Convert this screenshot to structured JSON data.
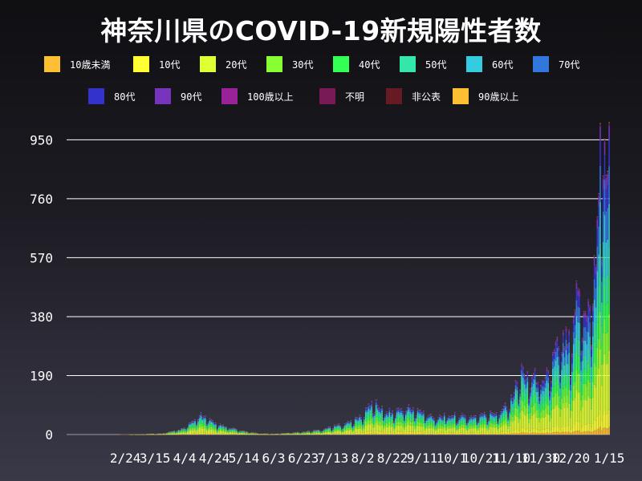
{
  "title": "神奈川県のCOVID-19新規陽性者数",
  "chart_data": {
    "type": "bar",
    "stacked": true,
    "title": "神奈川県のCOVID-19新規陽性者数",
    "xlabel": "",
    "ylabel": "",
    "ylim": [
      0,
      1000
    ],
    "yticks": [
      0,
      190,
      380,
      570,
      760,
      950
    ],
    "grid": "horizontal",
    "legend_position": "top",
    "x_tick_labels": [
      "2/24",
      "3/15",
      "4/4",
      "4/24",
      "5/14",
      "6/3",
      "6/23",
      "7/13",
      "8/2",
      "8/22",
      "9/11",
      "10/1",
      "10/21",
      "11/10",
      "11/30",
      "12/20",
      "1/15"
    ],
    "series": [
      {
        "name": "10歳未満",
        "color": "#ffbf33",
        "share": 0.03
      },
      {
        "name": "10代",
        "color": "#ffff33",
        "share": 0.07
      },
      {
        "name": "20代",
        "color": "#e0ff33",
        "share": 0.24
      },
      {
        "name": "30代",
        "color": "#88ff33",
        "share": 0.15
      },
      {
        "name": "40代",
        "color": "#33ff55",
        "share": 0.14
      },
      {
        "name": "50代",
        "color": "#33e6aa",
        "share": 0.13
      },
      {
        "name": "60代",
        "color": "#33cce0",
        "share": 0.08
      },
      {
        "name": "70代",
        "color": "#3377dd",
        "share": 0.07
      },
      {
        "name": "80代",
        "color": "#3333cc",
        "share": 0.05
      },
      {
        "name": "90代",
        "color": "#7733bb",
        "share": 0.025
      },
      {
        "name": "100歳以上",
        "color": "#992299",
        "share": 0.002
      },
      {
        "name": "不明",
        "color": "#771a55",
        "share": 0.008
      },
      {
        "name": "非公表",
        "color": "#661a22",
        "share": 0.003
      },
      {
        "name": "90歳以上",
        "color": "#ffbf33",
        "share": 0.002
      }
    ],
    "daily_totals": {
      "start": "2020-01-16",
      "end": "2021-01-15",
      "anchors": [
        [
          "2020-01-16",
          0
        ],
        [
          "2020-02-20",
          0
        ],
        [
          "2020-03-01",
          1
        ],
        [
          "2020-03-20",
          3
        ],
        [
          "2020-04-01",
          15
        ],
        [
          "2020-04-10",
          40
        ],
        [
          "2020-04-14",
          65
        ],
        [
          "2020-04-24",
          35
        ],
        [
          "2020-05-05",
          20
        ],
        [
          "2020-05-14",
          10
        ],
        [
          "2020-05-25",
          3
        ],
        [
          "2020-06-03",
          2
        ],
        [
          "2020-06-23",
          8
        ],
        [
          "2020-07-05",
          15
        ],
        [
          "2020-07-13",
          25
        ],
        [
          "2020-07-25",
          40
        ],
        [
          "2020-08-02",
          60
        ],
        [
          "2020-08-08",
          105
        ],
        [
          "2020-08-15",
          80
        ],
        [
          "2020-08-22",
          70
        ],
        [
          "2020-09-01",
          85
        ],
        [
          "2020-09-11",
          70
        ],
        [
          "2020-09-20",
          55
        ],
        [
          "2020-10-01",
          60
        ],
        [
          "2020-10-11",
          55
        ],
        [
          "2020-10-21",
          60
        ],
        [
          "2020-11-01",
          70
        ],
        [
          "2020-11-10",
          110
        ],
        [
          "2020-11-17",
          200
        ],
        [
          "2020-11-25",
          180
        ],
        [
          "2020-11-30",
          175
        ],
        [
          "2020-12-05",
          200
        ],
        [
          "2020-12-10",
          260
        ],
        [
          "2020-12-15",
          300
        ],
        [
          "2020-12-20",
          330
        ],
        [
          "2020-12-25",
          450
        ],
        [
          "2020-12-31",
          380
        ],
        [
          "2021-01-03",
          450
        ],
        [
          "2021-01-07",
          620
        ],
        [
          "2021-01-09",
          980
        ],
        [
          "2021-01-12",
          900
        ],
        [
          "2021-01-15",
          860
        ]
      ]
    }
  }
}
